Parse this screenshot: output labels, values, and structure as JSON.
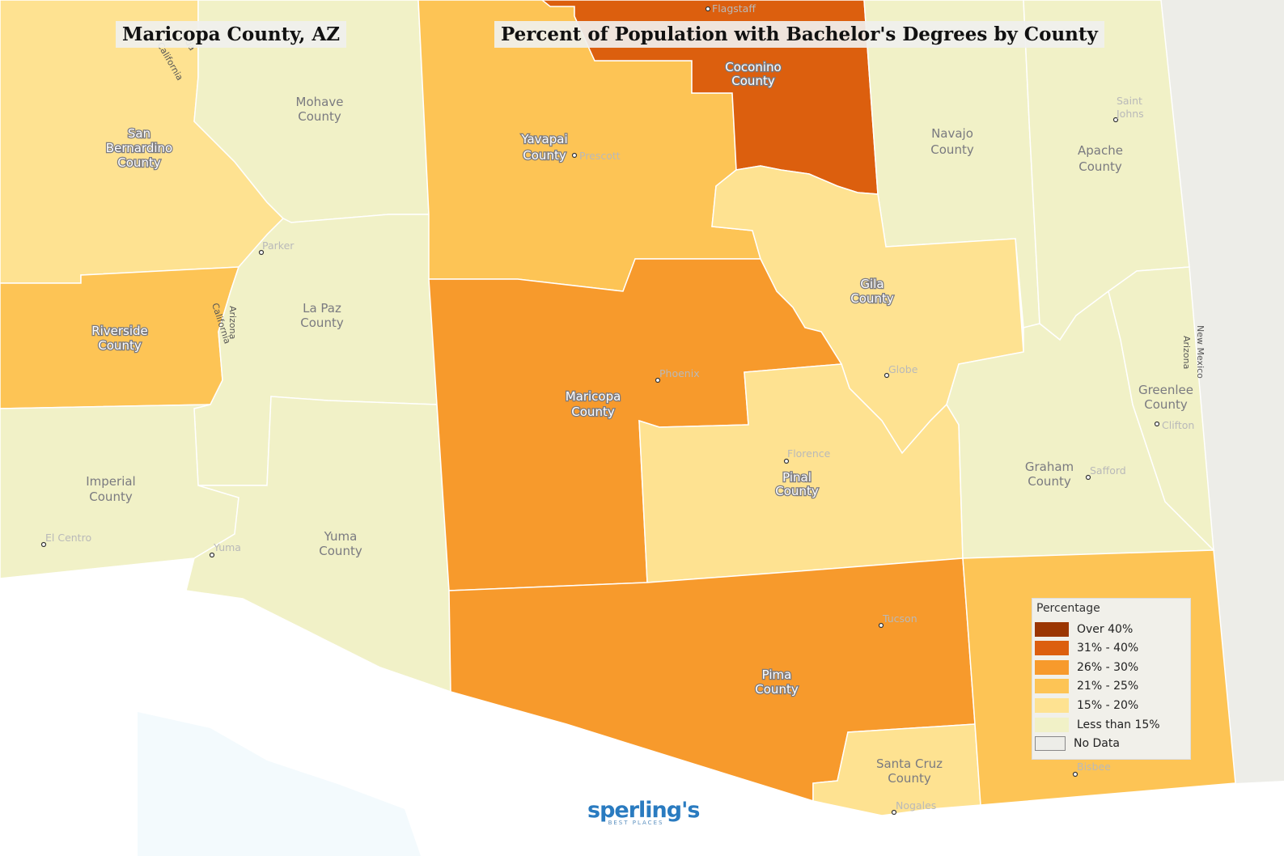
{
  "titles": {
    "county": "Maricopa County, AZ",
    "main": "Percent of Population with Bachelor's Degrees by County"
  },
  "legend": {
    "title": "Percentage",
    "items": [
      {
        "label": "Over 40%",
        "color": "#9b3602"
      },
      {
        "label": "31% - 40%",
        "color": "#dc5f0e"
      },
      {
        "label": "26% - 30%",
        "color": "#f79a2c"
      },
      {
        "label": "21% - 25%",
        "color": "#fdc455"
      },
      {
        "label": "15% - 20%",
        "color": "#fee291"
      },
      {
        "label": "Less than 15%",
        "color": "#f1f1c7"
      },
      {
        "label": "No Data",
        "color": "#edede8"
      }
    ]
  },
  "counties": {
    "mohave": {
      "name1": "Mohave",
      "name2": "County",
      "category": "Less than 15%"
    },
    "coconino": {
      "name1": "Coconino",
      "name2": "County",
      "category": "31% - 40%"
    },
    "navajo": {
      "name1": "Navajo",
      "name2": "County",
      "category": "Less than 15%"
    },
    "apache": {
      "name1": "Apache",
      "name2": "County",
      "category": "Less than 15%"
    },
    "yavapai": {
      "name1": "Yavapai",
      "name2": "County",
      "category": "21% - 25%"
    },
    "san_bernardino": {
      "name1": "San",
      "name2": "Bernardino",
      "name3": "County",
      "category": "15% - 20%"
    },
    "riverside": {
      "name1": "Riverside",
      "name2": "County",
      "category": "21% - 25%"
    },
    "la_paz": {
      "name1": "La Paz",
      "name2": "County",
      "category": "Less than 15%"
    },
    "gila": {
      "name1": "Gila",
      "name2": "County",
      "category": "15% - 20%"
    },
    "maricopa": {
      "name1": "Maricopa",
      "name2": "County",
      "category": "26% - 30%"
    },
    "greenlee": {
      "name1": "Greenlee",
      "name2": "County",
      "category": "Less than 15%"
    },
    "imperial": {
      "name1": "Imperial",
      "name2": "County",
      "category": "Less than 15%"
    },
    "pinal": {
      "name1": "Pinal",
      "name2": "County",
      "category": "15% - 20%"
    },
    "graham": {
      "name1": "Graham",
      "name2": "County",
      "category": "Less than 15%"
    },
    "yuma": {
      "name1": "Yuma",
      "name2": "County",
      "category": "Less than 15%"
    },
    "pima": {
      "name1": "Pima",
      "name2": "County",
      "category": "26% - 30%"
    },
    "santa_cruz": {
      "name1": "Santa Cruz",
      "name2": "County",
      "category": "15% - 20%"
    },
    "cochise": {
      "category": "21% - 25%"
    }
  },
  "cities": {
    "flagstaff": "Flagstaff",
    "prescott": "Prescott",
    "saint_johns_1": "Saint",
    "saint_johns_2": "Johns",
    "parker": "Parker",
    "phoenix": "Phoenix",
    "globe": "Globe",
    "clifton": "Clifton",
    "florence": "Florence",
    "safford": "Safford",
    "el_centro": "El Centro",
    "yuma": "Yuma",
    "tucson": "Tucson",
    "bisbee": "Bisbee",
    "nogales": "Nogales"
  },
  "borders": {
    "arizona": "Arizona",
    "california": "California",
    "new_mexico": "New Mexico",
    "nevada_partial": "vada"
  },
  "logo": {
    "main": "sperling's",
    "sub": "BEST PLACES"
  }
}
